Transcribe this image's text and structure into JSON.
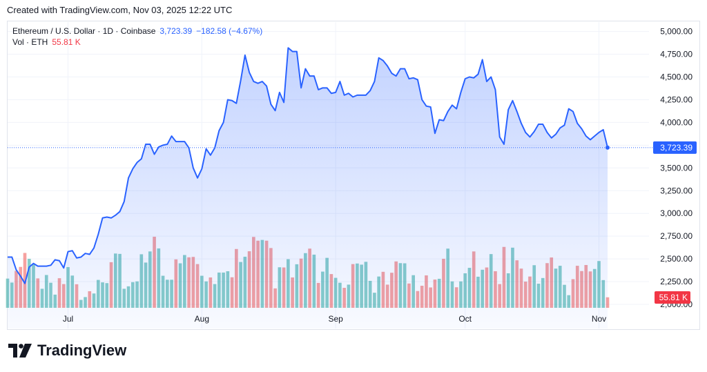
{
  "header": {
    "caption": "Created with TradingView.com, Nov 03, 2025 12:22 UTC"
  },
  "legend": {
    "symbol": "Ethereum / U.S. Dollar · 1D · Coinbase",
    "price": "3,723.39",
    "change": "−182.58 (−4.67%)",
    "volume_label": "Vol · ETH",
    "volume_value": "55.81 K"
  },
  "price_tag": "3,723.39",
  "volume_tag": "55.81 K",
  "brand": {
    "name": "TradingView"
  },
  "colors": {
    "line": "#2962ff",
    "vol_up": "#26a69a",
    "vol_down": "#ef5350",
    "text": "#131722",
    "grid": "#f0f3fa"
  },
  "chart_data": {
    "type": "area",
    "title": "Ethereum / U.S. Dollar · 1D · Coinbase",
    "ylim": [
      2000,
      5000
    ],
    "y_ticks": [
      "5,000.00",
      "4,750.00",
      "4,500.00",
      "4,250.00",
      "4,000.00",
      "3,750.00",
      "3,500.00",
      "3,250.00",
      "3,000.00",
      "2,750.00",
      "2,500.00",
      "2,250.00",
      "2,000.00"
    ],
    "x_tick_labels": [
      "Jul",
      "Aug",
      "Sep",
      "Oct",
      "Nov"
    ],
    "last_price": 3723.39,
    "series": [
      {
        "name": "Ethereum / U.S. Dollar",
        "kind": "close",
        "x": [
          "2025-06-17",
          "2025-06-18",
          "2025-06-19",
          "2025-06-20",
          "2025-06-21",
          "2025-06-22",
          "2025-06-23",
          "2025-06-24",
          "2025-06-25",
          "2025-06-26",
          "2025-06-27",
          "2025-06-28",
          "2025-06-29",
          "2025-06-30",
          "2025-07-01",
          "2025-07-02",
          "2025-07-03",
          "2025-07-04",
          "2025-07-05",
          "2025-07-06",
          "2025-07-07",
          "2025-07-08",
          "2025-07-09",
          "2025-07-10",
          "2025-07-11",
          "2025-07-12",
          "2025-07-13",
          "2025-07-14",
          "2025-07-15",
          "2025-07-16",
          "2025-07-17",
          "2025-07-18",
          "2025-07-19",
          "2025-07-20",
          "2025-07-21",
          "2025-07-22",
          "2025-07-23",
          "2025-07-24",
          "2025-07-25",
          "2025-07-26",
          "2025-07-27",
          "2025-07-28",
          "2025-07-29",
          "2025-07-30",
          "2025-07-31",
          "2025-08-01",
          "2025-08-02",
          "2025-08-03",
          "2025-08-04",
          "2025-08-05",
          "2025-08-06",
          "2025-08-07",
          "2025-08-08",
          "2025-08-09",
          "2025-08-10",
          "2025-08-11",
          "2025-08-12",
          "2025-08-13",
          "2025-08-14",
          "2025-08-15",
          "2025-08-16",
          "2025-08-17",
          "2025-08-18",
          "2025-08-19",
          "2025-08-20",
          "2025-08-21",
          "2025-08-22",
          "2025-08-23",
          "2025-08-24",
          "2025-08-25",
          "2025-08-26",
          "2025-08-27",
          "2025-08-28",
          "2025-08-29",
          "2025-08-30",
          "2025-08-31",
          "2025-09-01",
          "2025-09-02",
          "2025-09-03",
          "2025-09-04",
          "2025-09-05",
          "2025-09-06",
          "2025-09-07",
          "2025-09-08",
          "2025-09-09",
          "2025-09-10",
          "2025-09-11",
          "2025-09-12",
          "2025-09-13",
          "2025-09-14",
          "2025-09-15",
          "2025-09-16",
          "2025-09-17",
          "2025-09-18",
          "2025-09-19",
          "2025-09-20",
          "2025-09-21",
          "2025-09-22",
          "2025-09-23",
          "2025-09-24",
          "2025-09-25",
          "2025-09-26",
          "2025-09-27",
          "2025-09-28",
          "2025-09-29",
          "2025-09-30",
          "2025-10-01",
          "2025-10-02",
          "2025-10-03",
          "2025-10-04",
          "2025-10-05",
          "2025-10-06",
          "2025-10-07",
          "2025-10-08",
          "2025-10-09",
          "2025-10-10",
          "2025-10-11",
          "2025-10-12",
          "2025-10-13",
          "2025-10-14",
          "2025-10-15",
          "2025-10-16",
          "2025-10-17",
          "2025-10-18",
          "2025-10-19",
          "2025-10-20",
          "2025-10-21",
          "2025-10-22",
          "2025-10-23",
          "2025-10-24",
          "2025-10-25",
          "2025-10-26",
          "2025-10-27",
          "2025-10-28",
          "2025-10-29",
          "2025-10-30",
          "2025-10-31",
          "2025-11-01",
          "2025-11-02",
          "2025-11-03"
        ],
        "values": [
          2520,
          2520,
          2380,
          2310,
          2230,
          2410,
          2450,
          2420,
          2420,
          2420,
          2430,
          2490,
          2480,
          2400,
          2580,
          2590,
          2510,
          2520,
          2560,
          2550,
          2620,
          2770,
          2950,
          2960,
          2950,
          2980,
          3020,
          3130,
          3390,
          3490,
          3560,
          3600,
          3760,
          3760,
          3650,
          3730,
          3750,
          3760,
          3850,
          3790,
          3790,
          3790,
          3720,
          3500,
          3390,
          3490,
          3710,
          3640,
          3720,
          3910,
          4000,
          4250,
          4240,
          4210,
          4460,
          4740,
          4550,
          4450,
          4430,
          4450,
          4400,
          4200,
          4130,
          4330,
          4220,
          4820,
          4780,
          4780,
          4380,
          4590,
          4510,
          4510,
          4360,
          4380,
          4380,
          4320,
          4330,
          4450,
          4300,
          4320,
          4280,
          4300,
          4300,
          4300,
          4350,
          4450,
          4710,
          4680,
          4620,
          4540,
          4510,
          4590,
          4590,
          4480,
          4490,
          4470,
          4250,
          4180,
          4170,
          3880,
          4030,
          4020,
          4120,
          4190,
          4150,
          4330,
          4480,
          4500,
          4490,
          4530,
          4690,
          4450,
          4500,
          4360,
          3840,
          3760,
          4140,
          4240,
          4120,
          3990,
          3890,
          3840,
          3900,
          3980,
          3980,
          3890,
          3830,
          3870,
          3940,
          3970,
          4150,
          4120,
          3990,
          3930,
          3850,
          3810,
          3850,
          3890,
          3920,
          3723.39
        ]
      },
      {
        "name": "Vol · ETH",
        "kind": "volume",
        "values": [
          155,
          134,
          196,
          217,
          291,
          260,
          233,
          156,
          101,
          174,
          133,
          70,
          157,
          126,
          216,
          171,
          125,
          42,
          57,
          88,
          76,
          148,
          135,
          131,
          242,
          288,
          286,
          101,
          114,
          136,
          140,
          284,
          240,
          299,
          377,
          315,
          170,
          149,
          149,
          257,
          236,
          280,
          268,
          270,
          232,
          170,
          140,
          161,
          126,
          187,
          187,
          194,
          162,
          312,
          243,
          271,
          300,
          376,
          356,
          360,
          356,
          317,
          103,
          215,
          214,
          258,
          161,
          231,
          261,
          290,
          314,
          282,
          132,
          192,
          265,
          179,
          159,
          133,
          106,
          123,
          232,
          235,
          229,
          244,
          143,
          80,
          166,
          191,
          123,
          186,
          246,
          237,
          236,
          129,
          173,
          89,
          117,
          172,
          108,
          150,
          154,
          260,
          314,
          140,
          109,
          140,
          183,
          212,
          299,
          165,
          202,
          214,
          285,
          194,
          126,
          323,
          183,
          319,
          252,
          208,
          139,
          166,
          226,
          128,
          158,
          237,
          267,
          208,
          223,
          122,
          67,
          152,
          223,
          195,
          227,
          193,
          206,
          248,
          147,
          55.81
        ]
      }
    ]
  }
}
